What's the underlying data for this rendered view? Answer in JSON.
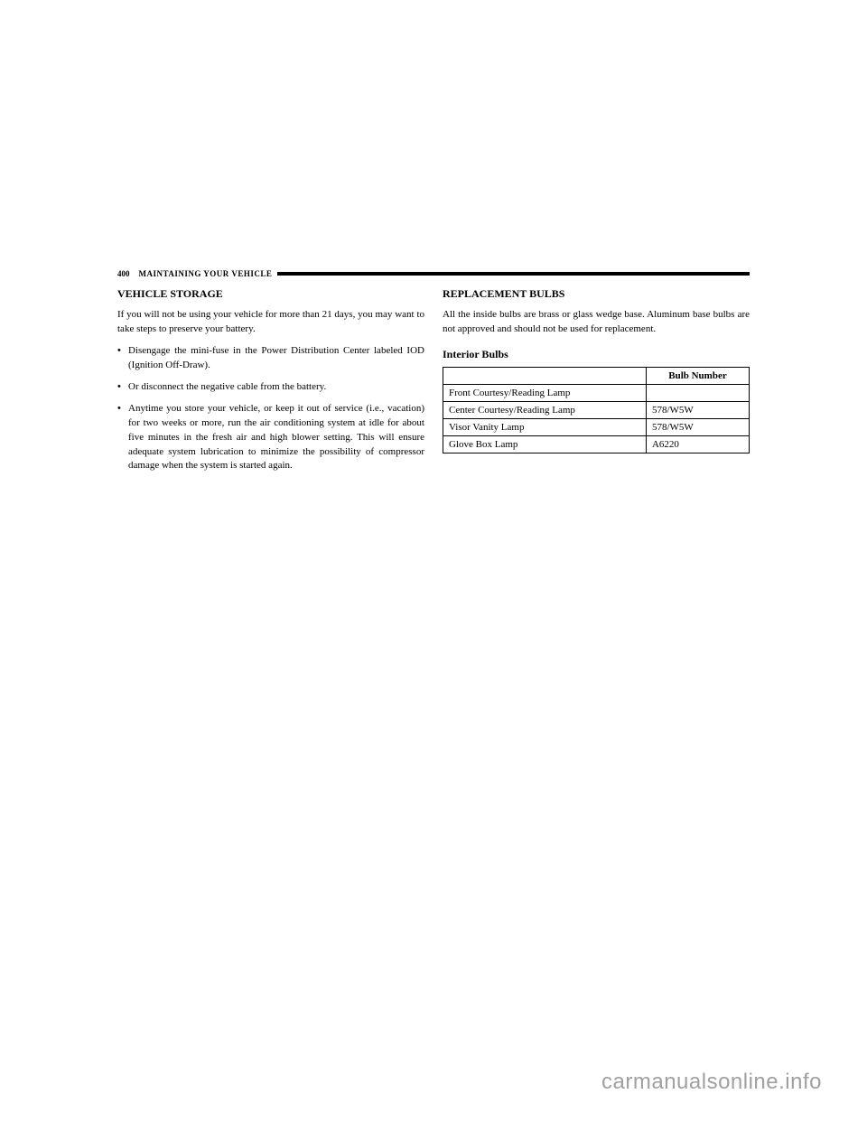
{
  "header": {
    "page_number": "400",
    "section": "MAINTAINING YOUR VEHICLE"
  },
  "left_column": {
    "heading": "VEHICLE STORAGE",
    "intro": "If you will not be using your vehicle for more than 21 days, you may want to take steps to preserve your battery.",
    "bullets": [
      "Disengage the mini-fuse in the Power Distribution Center labeled IOD (Ignition Off-Draw).",
      "Or disconnect the negative cable from the battery.",
      "Anytime you store your vehicle, or keep it out of service (i.e., vacation) for two weeks or more, run the air conditioning system at idle for about five minutes in the fresh air and high blower setting. This will ensure adequate system lubrication to minimize the possibility of compressor damage when the system is started again."
    ]
  },
  "right_column": {
    "heading": "REPLACEMENT BULBS",
    "intro": "All the inside bulbs are brass or glass wedge base. Aluminum base bulbs are not approved and should not be used for replacement.",
    "subheading": "Interior Bulbs",
    "table": {
      "header": [
        "",
        "Bulb Number"
      ],
      "rows": [
        {
          "label": "Front Courtesy/Reading Lamp",
          "value": ""
        },
        {
          "label": "Center Courtesy/Reading Lamp",
          "value": "578/W5W"
        },
        {
          "label": "Visor Vanity Lamp",
          "value": "578/W5W"
        },
        {
          "label": "Glove Box Lamp",
          "value": "A6220"
        }
      ]
    }
  },
  "watermark": "carmanualsonline.info"
}
